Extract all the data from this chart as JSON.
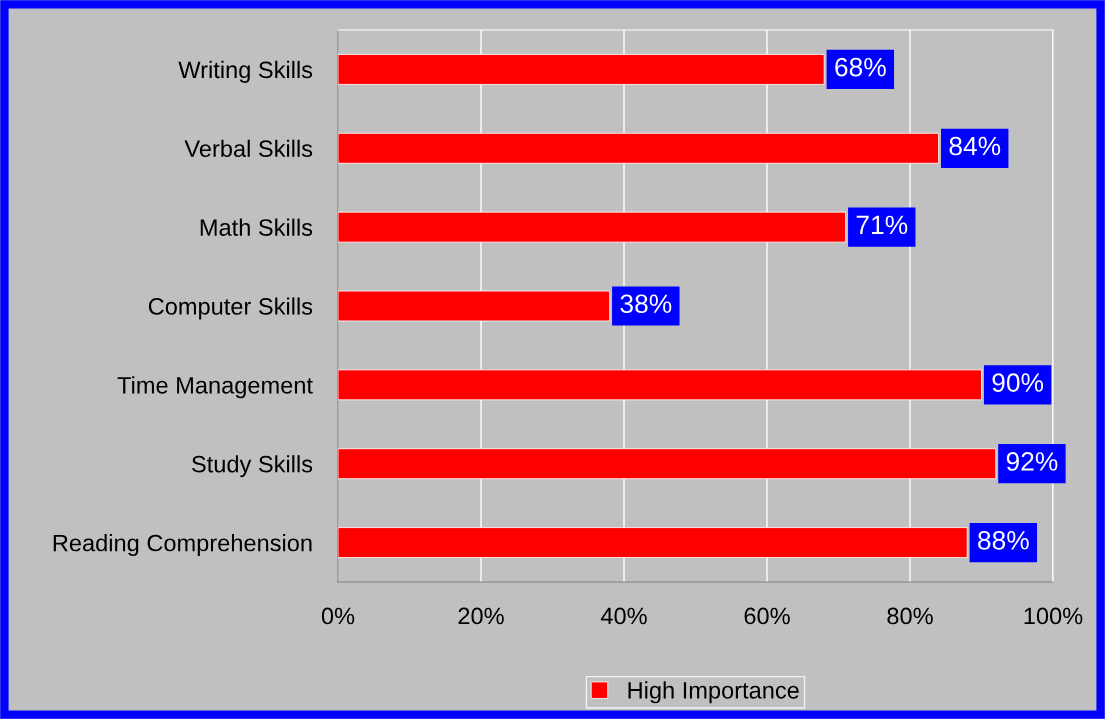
{
  "chart_data": {
    "type": "bar",
    "orientation": "horizontal",
    "categories": [
      "Writing Skills",
      "Verbal Skills",
      "Math Skills",
      "Computer Skills",
      "Time Management",
      "Study Skills",
      "Reading Comprehension"
    ],
    "series": [
      {
        "name": "High Importance",
        "color": "#ff0000",
        "values": [
          68,
          84,
          71,
          38,
          90,
          92,
          88
        ],
        "value_labels": [
          "68%",
          "84%",
          "71%",
          "38%",
          "90%",
          "92%",
          "88%"
        ]
      }
    ],
    "xlim": [
      0,
      100
    ],
    "xticks": [
      {
        "value": 0,
        "label": "0%"
      },
      {
        "value": 20,
        "label": "20%"
      },
      {
        "value": 40,
        "label": "40%"
      },
      {
        "value": 60,
        "label": "60%"
      },
      {
        "value": 80,
        "label": "80%"
      },
      {
        "value": 100,
        "label": "100%"
      }
    ],
    "grid": "x",
    "legend": "bottom"
  }
}
